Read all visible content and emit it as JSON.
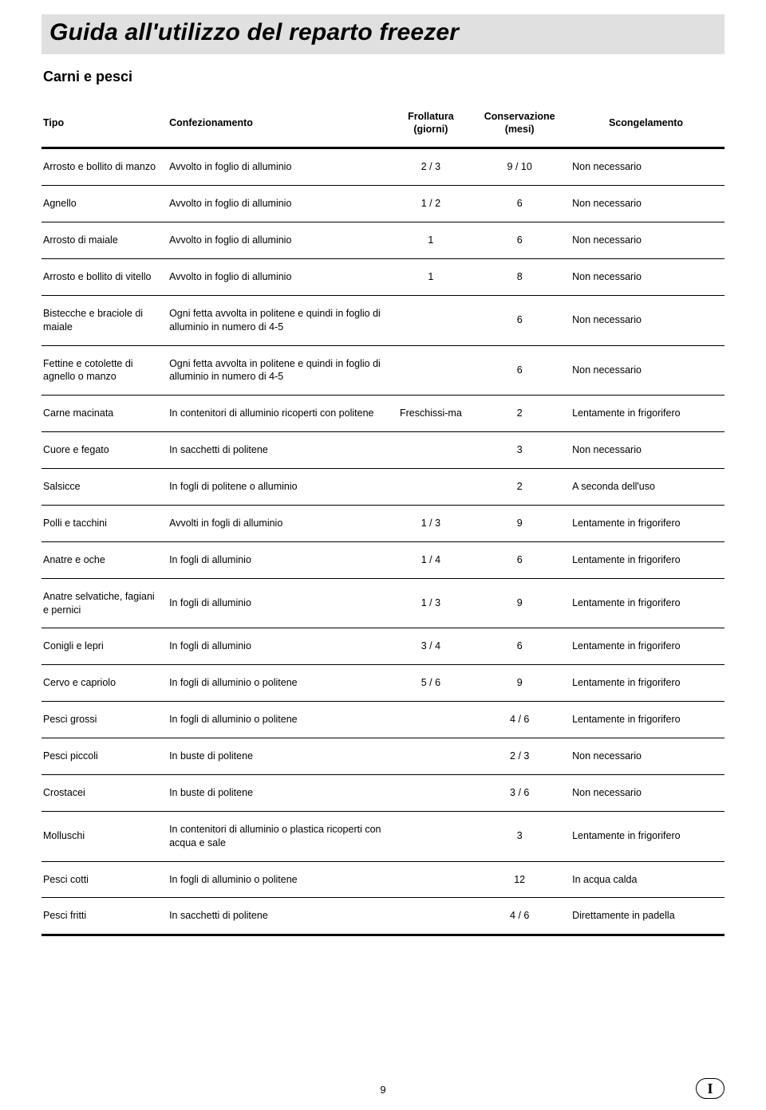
{
  "page": {
    "title": "Guida all'utilizzo del reparto freezer",
    "subtitle": "Carni e pesci",
    "number": "9",
    "badge": "I"
  },
  "table": {
    "headers": {
      "type": "Tipo",
      "packaging": "Confezionamento",
      "aging": "Frollatura (giorni)",
      "storage": "Conservazione (mesi)",
      "thaw": "Scongelamento"
    },
    "rows": [
      {
        "type": "Arrosto e bollito di manzo",
        "packaging": "Avvolto in foglio di alluminio",
        "aging": "2 / 3",
        "storage": "9 / 10",
        "thaw": "Non necessario"
      },
      {
        "type": "Agnello",
        "packaging": "Avvolto in foglio di alluminio",
        "aging": "1 / 2",
        "storage": "6",
        "thaw": "Non necessario"
      },
      {
        "type": "Arrosto di maiale",
        "packaging": "Avvolto in foglio di alluminio",
        "aging": "1",
        "storage": "6",
        "thaw": "Non necessario"
      },
      {
        "type": "Arrosto e bollito di vitello",
        "packaging": "Avvolto in foglio di alluminio",
        "aging": "1",
        "storage": "8",
        "thaw": "Non necessario"
      },
      {
        "type": "Bistecche e braciole di maiale",
        "packaging": "Ogni fetta avvolta in politene e quindi in foglio di alluminio in numero di 4-5",
        "aging": "",
        "storage": "6",
        "thaw": "Non necessario"
      },
      {
        "type": "Fettine e cotolette di agnello o manzo",
        "packaging": "Ogni fetta avvolta in politene e quindi in foglio di alluminio in numero di 4-5",
        "aging": "",
        "storage": "6",
        "thaw": "Non necessario"
      },
      {
        "type": "Carne macinata",
        "packaging": "In contenitori di alluminio ricoperti con politene",
        "aging": "Freschissi-ma",
        "storage": "2",
        "thaw": "Lentamente in frigorifero"
      },
      {
        "type": "Cuore e fegato",
        "packaging": "In sacchetti di politene",
        "aging": "",
        "storage": "3",
        "thaw": "Non necessario"
      },
      {
        "type": "Salsicce",
        "packaging": "In fogli di politene o alluminio",
        "aging": "",
        "storage": "2",
        "thaw": "A seconda dell'uso"
      },
      {
        "type": "Polli e tacchini",
        "packaging": "Avvolti in fogli di alluminio",
        "aging": "1 / 3",
        "storage": "9",
        "thaw": "Lentamente in frigorifero"
      },
      {
        "type": "Anatre e oche",
        "packaging": "In fogli di alluminio",
        "aging": "1 / 4",
        "storage": "6",
        "thaw": "Lentamente in frigorifero"
      },
      {
        "type": "Anatre selvatiche, fagiani e pernici",
        "packaging": "In fogli di alluminio",
        "aging": "1 / 3",
        "storage": "9",
        "thaw": "Lentamente in frigorifero"
      },
      {
        "type": "Conigli e lepri",
        "packaging": "In fogli di alluminio",
        "aging": "3 / 4",
        "storage": "6",
        "thaw": "Lentamente in frigorifero"
      },
      {
        "type": "Cervo e capriolo",
        "packaging": "In fogli di alluminio o politene",
        "aging": "5 / 6",
        "storage": "9",
        "thaw": "Lentamente in frigorifero"
      },
      {
        "type": "Pesci grossi",
        "packaging": "In fogli di alluminio o politene",
        "aging": "",
        "storage": "4 / 6",
        "thaw": "Lentamente in frigorifero"
      },
      {
        "type": "Pesci piccoli",
        "packaging": "In buste di politene",
        "aging": "",
        "storage": "2 / 3",
        "thaw": "Non necessario"
      },
      {
        "type": "Crostacei",
        "packaging": "In buste di politene",
        "aging": "",
        "storage": "3 / 6",
        "thaw": "Non necessario"
      },
      {
        "type": "Molluschi",
        "packaging": "In contenitori di alluminio o plastica ricoperti con acqua e sale",
        "aging": "",
        "storage": "3",
        "thaw": "Lentamente in frigorifero"
      },
      {
        "type": "Pesci cotti",
        "packaging": "In fogli di alluminio o politene",
        "aging": "",
        "storage": "12",
        "thaw": "In acqua calda"
      },
      {
        "type": "Pesci fritti",
        "packaging": "In sacchetti di politene",
        "aging": "",
        "storage": "4 / 6",
        "thaw": "Direttamente in padella"
      }
    ]
  }
}
